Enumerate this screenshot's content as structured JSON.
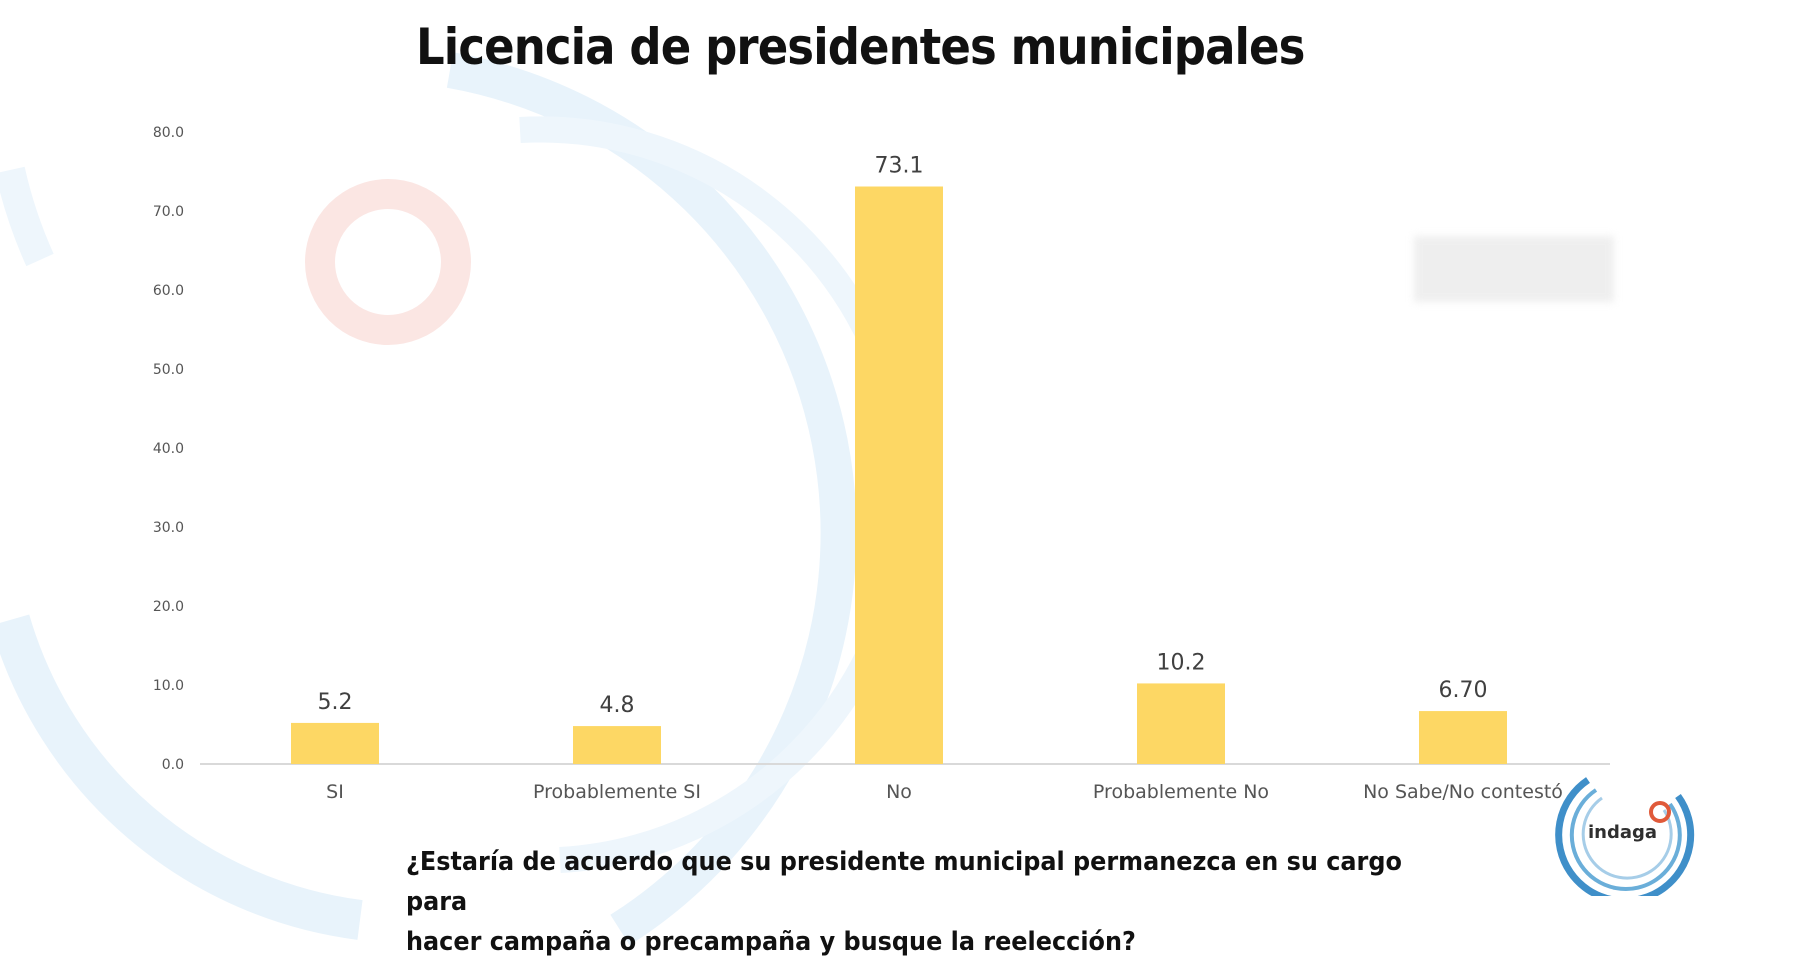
{
  "title": "Licencia de presidentes municipales",
  "question": {
    "line1": "¿Estaría de acuerdo que su presidente municipal permanezca en su cargo para",
    "line2": "hacer campaña o precampaña y busque la reelección?"
  },
  "logo": {
    "text": "indaga"
  },
  "colors": {
    "bar": "#FDD764",
    "axis": "#d9d9d9",
    "decor_blue": "#e8f3fb",
    "decor_red": "#fbe6e3",
    "logo_blue": "#3f8fc9",
    "logo_red": "#e05a3a"
  },
  "chart_data": {
    "type": "bar",
    "title": "Licencia de presidentes municipales",
    "categories": [
      "SI",
      "Probablemente SI",
      "No",
      "Probablemente No",
      "No Sabe/No contestó"
    ],
    "values": [
      5.2,
      4.8,
      73.1,
      10.2,
      6.7
    ],
    "value_labels": [
      "5.2",
      "4.8",
      "73.1",
      "10.2",
      "6.70"
    ],
    "ylim": [
      0,
      80
    ],
    "yticks": [
      0,
      10,
      20,
      30,
      40,
      50,
      60,
      70,
      80
    ],
    "ytick_labels": [
      "0.0",
      "10.0",
      "20.0",
      "30.0",
      "40.0",
      "50.0",
      "60.0",
      "70.0",
      "80.0"
    ],
    "xlabel": "",
    "ylabel": "",
    "grid": false,
    "legend": "none"
  }
}
